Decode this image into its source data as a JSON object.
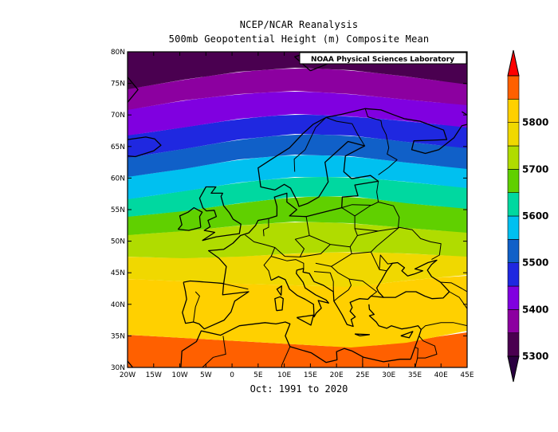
{
  "title": {
    "line1": "NCEP/NCAR Reanalysis",
    "line2": "500mb Geopotential Height (m) Composite Mean"
  },
  "subtitle": "Oct: 1991 to 2020",
  "credit": "NOAA Physical Sciences Laboratory",
  "axes": {
    "lon_ticks": [
      "20W",
      "15W",
      "10W",
      "5W",
      "0",
      "5E",
      "10E",
      "15E",
      "20E",
      "25E",
      "30E",
      "35E",
      "40E",
      "45E"
    ],
    "lat_ticks": [
      "30N",
      "35N",
      "40N",
      "45N",
      "50N",
      "55N",
      "60N",
      "65N",
      "70N",
      "75N",
      "80N"
    ]
  },
  "colorbar": {
    "labels": [
      "5300",
      "5400",
      "5500",
      "5600",
      "5700",
      "5800"
    ],
    "colors": [
      "#7a007a",
      "#8000e0",
      "#1f28e0",
      "#1060c8",
      "#00c0f0",
      "#00d8a0",
      "#60d000",
      "#b0dc00",
      "#f0d800",
      "#ffd000",
      "#ff6000",
      "#ff0000"
    ]
  },
  "field": {
    "bands": [
      {
        "color": "#ff6000",
        "level_m": 5850
      },
      {
        "color": "#ffd000",
        "level_m": 5800
      },
      {
        "color": "#f0d800",
        "level_m": 5750
      },
      {
        "color": "#b0dc00",
        "level_m": 5700
      },
      {
        "color": "#60d000",
        "level_m": 5650
      },
      {
        "color": "#00d8a0",
        "level_m": 5600
      },
      {
        "color": "#00c0f0",
        "level_m": 5550
      },
      {
        "color": "#1060c8",
        "level_m": 5500
      },
      {
        "color": "#1f28e0",
        "level_m": 5450
      },
      {
        "color": "#8000e0",
        "level_m": 5400
      },
      {
        "color": "#8c00a0",
        "level_m": 5350
      },
      {
        "color": "#4a0050",
        "level_m": 5300
      }
    ]
  }
}
